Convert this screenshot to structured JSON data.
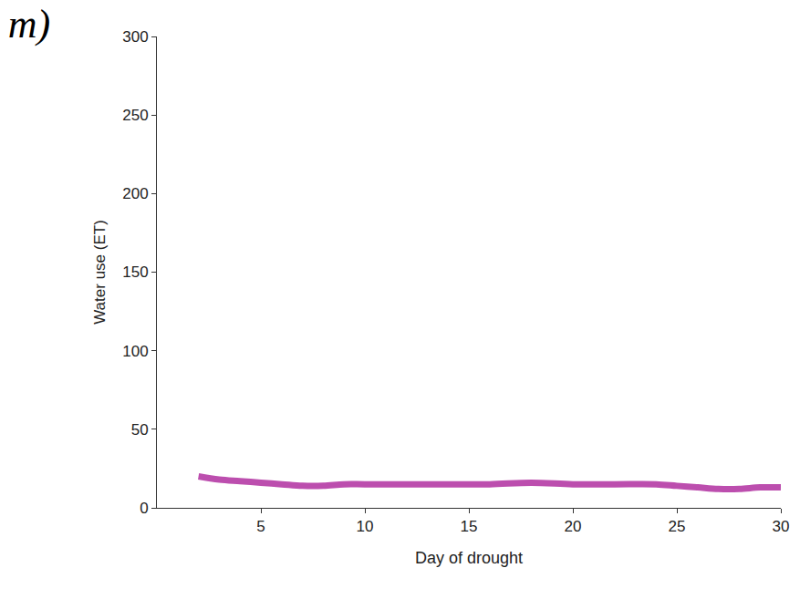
{
  "chart_data": {
    "type": "line",
    "title": "m)",
    "x_label": "Day of drought",
    "y_label": "Water use (ET)",
    "x": [
      2,
      3,
      4,
      5,
      6,
      7,
      8,
      9,
      10,
      12,
      14,
      16,
      18,
      20,
      22,
      24,
      25,
      26,
      27,
      28,
      29,
      30
    ],
    "values": [
      20,
      18,
      17,
      16,
      15,
      14,
      14,
      15,
      15,
      15,
      15,
      15,
      16,
      15,
      15,
      15,
      14,
      13,
      12,
      12,
      13,
      13
    ],
    "color": "#b02fa0",
    "xlim": [
      0,
      30
    ],
    "ylim": [
      0,
      300
    ],
    "xticks": [
      5,
      10,
      15,
      20,
      25,
      30
    ],
    "yticks": [
      0,
      50,
      100,
      150,
      200,
      250,
      300
    ],
    "grid": false
  }
}
